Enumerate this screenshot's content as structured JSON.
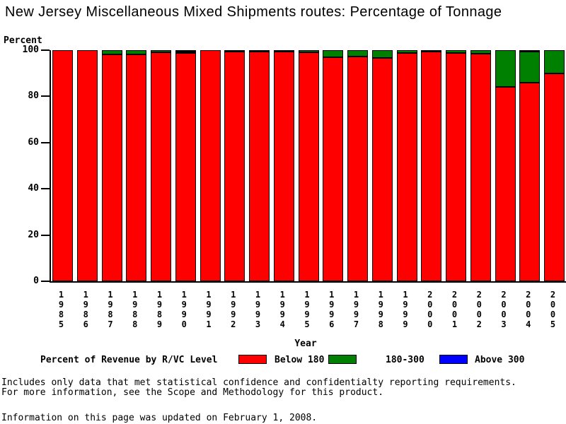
{
  "title": "New Jersey Miscellaneous Mixed Shipments routes: Percentage of Tonnage",
  "chart_data": {
    "type": "bar",
    "stacked": true,
    "title": "New Jersey Miscellaneous Mixed Shipments routes: Percentage of Tonnage",
    "xlabel": "Year",
    "ylabel": "Percent",
    "ylim": [
      0,
      100
    ],
    "yticks": [
      0,
      20,
      40,
      60,
      80,
      100
    ],
    "grid": false,
    "legend_position": "bottom",
    "legend_title": "Percent of Revenue by R/VC Level",
    "categories": [
      "1985",
      "1986",
      "1987",
      "1988",
      "1989",
      "1990",
      "1991",
      "1992",
      "1993",
      "1994",
      "1995",
      "1996",
      "1997",
      "1998",
      "1999",
      "2000",
      "2001",
      "2002",
      "2003",
      "2004",
      "2005"
    ],
    "series": [
      {
        "name": "Below 180",
        "color": "#ff0000",
        "values": [
          100,
          100,
          98.1,
          98.3,
          99.2,
          98.7,
          100,
          99.5,
          99.4,
          99.4,
          99.0,
          97.0,
          97.2,
          96.6,
          98.9,
          99.5,
          98.9,
          98.5,
          84.1,
          85.9,
          89.9
        ]
      },
      {
        "name": "180-300",
        "color": "#008000",
        "values": [
          0,
          0,
          1.9,
          1.7,
          0.8,
          0.7,
          0,
          0.5,
          0.6,
          0.6,
          1.0,
          3.0,
          2.8,
          3.4,
          1.1,
          0.5,
          1.1,
          1.5,
          15.9,
          13.5,
          10.1
        ]
      },
      {
        "name": "Above 300",
        "color": "#0000ff",
        "values": [
          0,
          0,
          0,
          0,
          0,
          0.6,
          0,
          0,
          0,
          0,
          0,
          0,
          0,
          0,
          0,
          0,
          0,
          0,
          0,
          0.6,
          0
        ]
      }
    ]
  },
  "footer": {
    "line1": "Includes only data that met statistical confidence and confidentialty reporting requirements.",
    "line2": "For more information, see the Scope and Methodology for this product.",
    "line3": "Information on this page was updated on February 1, 2008."
  }
}
